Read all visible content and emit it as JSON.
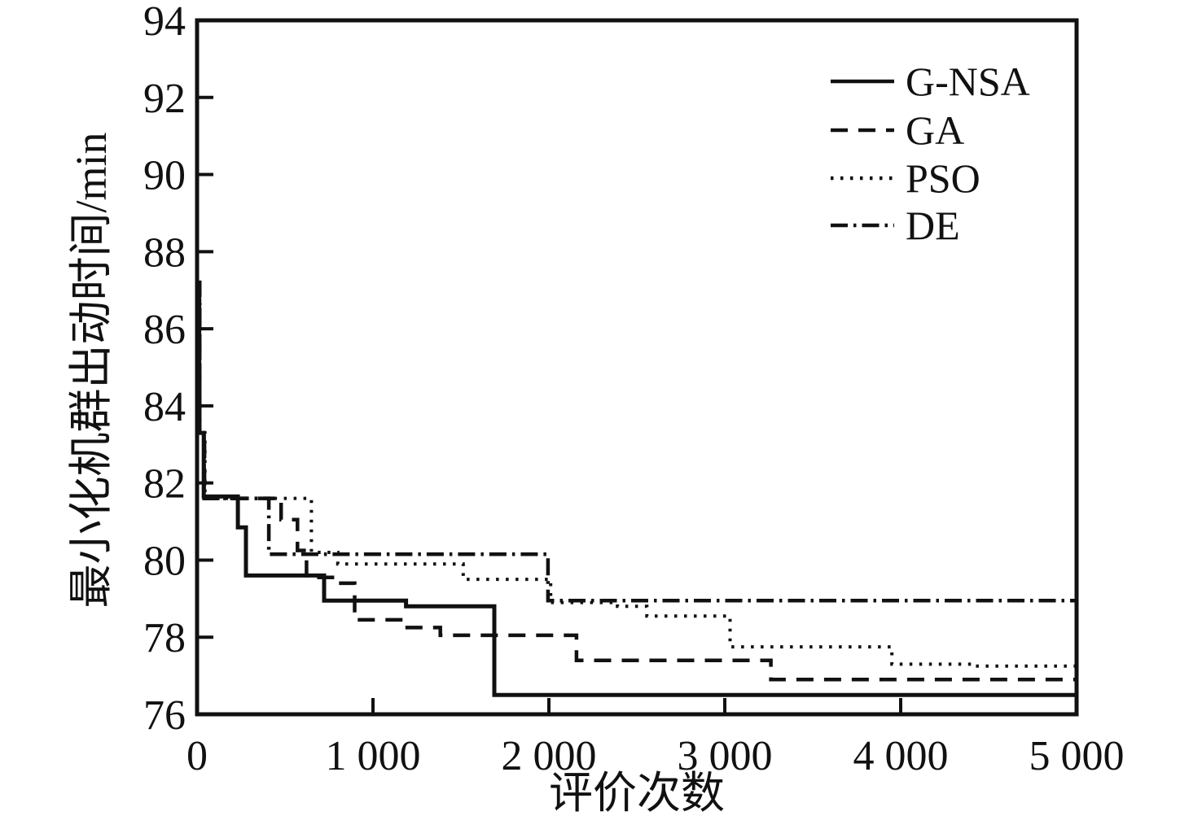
{
  "figure": {
    "background": "#ffffff",
    "ink_color": "#111111"
  },
  "chart_data": {
    "type": "line",
    "subtype": "step-convergence",
    "title": "",
    "xlabel": "评价次数",
    "ylabel": "最小化机群出动时间/min",
    "xlim": [
      0,
      5000
    ],
    "ylim": [
      76,
      94
    ],
    "grid": false,
    "legend_position": "upper right",
    "x_ticks": [
      0,
      1000,
      2000,
      3000,
      4000,
      5000
    ],
    "x_tick_labels": [
      "0",
      "1 000",
      "2 000",
      "3 000",
      "4 000",
      "5 000"
    ],
    "y_ticks": [
      76,
      78,
      80,
      82,
      84,
      86,
      88,
      90,
      92,
      94
    ],
    "y_tick_labels": [
      "76",
      "78",
      "80",
      "82",
      "84",
      "86",
      "88",
      "90",
      "92",
      "94"
    ],
    "series": [
      {
        "name": "G-NSA",
        "style": "solid",
        "points": [
          [
            0,
            87.2
          ],
          [
            12,
            83.3
          ],
          [
            38,
            81.65
          ],
          [
            232,
            80.85
          ],
          [
            278,
            79.6
          ],
          [
            722,
            78.95
          ],
          [
            1188,
            78.8
          ],
          [
            1690,
            76.5
          ],
          [
            5000,
            76.5
          ]
        ]
      },
      {
        "name": "GA",
        "style": "dashed",
        "points": [
          [
            0,
            87.2
          ],
          [
            15,
            83.3
          ],
          [
            42,
            81.6
          ],
          [
            478,
            81.05
          ],
          [
            571,
            80.25
          ],
          [
            622,
            79.55
          ],
          [
            800,
            79.4
          ],
          [
            896,
            78.45
          ],
          [
            1174,
            78.25
          ],
          [
            1383,
            78.05
          ],
          [
            2157,
            77.4
          ],
          [
            3262,
            76.9
          ],
          [
            5000,
            76.9
          ]
        ]
      },
      {
        "name": "PSO",
        "style": "dotted",
        "points": [
          [
            0,
            87.2
          ],
          [
            15,
            83.3
          ],
          [
            45,
            81.6
          ],
          [
            650,
            80.2
          ],
          [
            800,
            79.9
          ],
          [
            1513,
            79.5
          ],
          [
            2010,
            78.9
          ],
          [
            2390,
            78.8
          ],
          [
            2557,
            78.55
          ],
          [
            3030,
            77.75
          ],
          [
            3950,
            77.3
          ],
          [
            4400,
            77.25
          ],
          [
            5000,
            77.25
          ]
        ]
      },
      {
        "name": "DE",
        "style": "dashdot",
        "points": [
          [
            0,
            87.2
          ],
          [
            15,
            83.3
          ],
          [
            40,
            81.6
          ],
          [
            408,
            80.15
          ],
          [
            1995,
            78.95
          ],
          [
            5000,
            78.95
          ]
        ]
      }
    ]
  }
}
